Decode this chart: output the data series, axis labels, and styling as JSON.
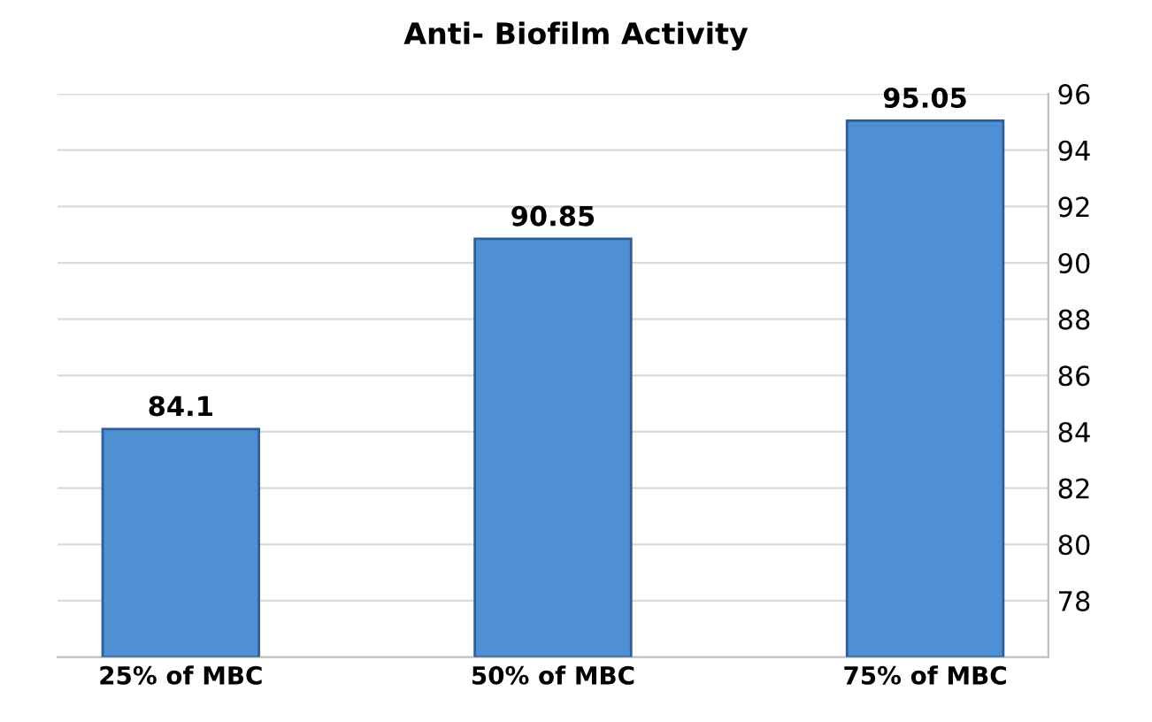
{
  "chart_data": {
    "type": "bar",
    "title": "Anti- Biofilm Activity",
    "categories": [
      "25% of MBC",
      "50% of MBC",
      "75% of MBC"
    ],
    "values": [
      84.1,
      90.85,
      95.05
    ],
    "color": "#4f8fd4",
    "ylim": [
      76,
      96
    ],
    "yticks": [
      78,
      80,
      82,
      84,
      86,
      88,
      90,
      92,
      94,
      96
    ],
    "grid": "y",
    "data_labels": true
  }
}
